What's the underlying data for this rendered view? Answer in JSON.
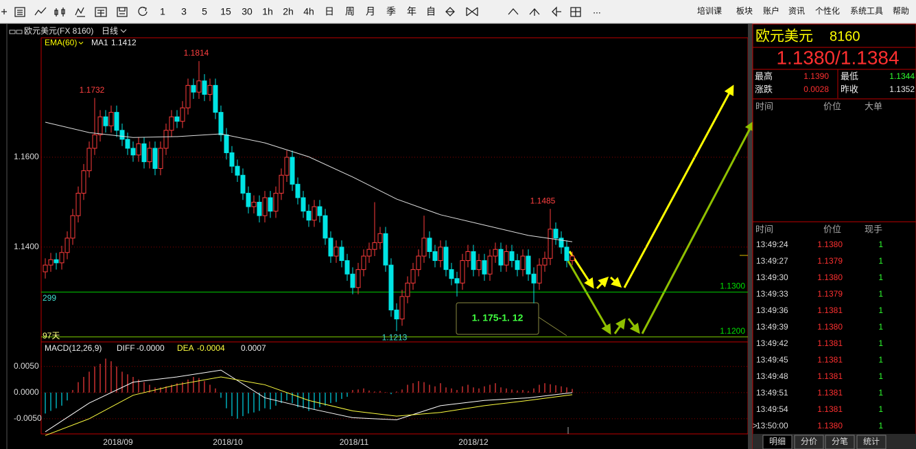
{
  "toolbar": {
    "periods": [
      "1",
      "3",
      "5",
      "15",
      "30",
      "1h",
      "2h",
      "4h",
      "日",
      "周",
      "月",
      "季",
      "年",
      "自"
    ],
    "more": "...",
    "menu": [
      "培训课",
      "板块",
      "账户",
      "资讯",
      "个性化",
      "系统工具",
      "帮助"
    ]
  },
  "header": {
    "symbol": "欧元美元(FX 8160)",
    "period": "日线"
  },
  "chart_data": [
    {
      "type": "candlestick",
      "ylim": [
        1.1189,
        1.1866
      ],
      "yticks": [
        {
          "value": 1.16,
          "label": "1.1600"
        },
        {
          "value": 1.14,
          "label": "1.1400"
        }
      ],
      "up_color": "#ff3c3c",
      "down_color": "#00e4e4",
      "ohlc": [
        [
          1.1345,
          1.1375,
          1.133,
          1.136
        ],
        [
          1.136,
          1.1387,
          1.1345,
          1.1372
        ],
        [
          1.1372,
          1.1387,
          1.135,
          1.1365
        ],
        [
          1.1365,
          1.1403,
          1.135,
          1.1388
        ],
        [
          1.1388,
          1.1435,
          1.1373,
          1.142
        ],
        [
          1.142,
          1.1485,
          1.1405,
          1.147
        ],
        [
          1.147,
          1.1535,
          1.1455,
          1.152
        ],
        [
          1.152,
          1.1585,
          1.1505,
          1.157
        ],
        [
          1.157,
          1.1635,
          1.1555,
          1.162
        ],
        [
          1.162,
          1.1732,
          1.1605,
          1.165
        ],
        [
          1.165,
          1.1705,
          1.1635,
          1.169
        ],
        [
          1.169,
          1.1705,
          1.1655,
          1.167
        ],
        [
          1.167,
          1.1715,
          1.1655,
          1.17
        ],
        [
          1.17,
          1.1715,
          1.1645,
          1.166
        ],
        [
          1.166,
          1.1675,
          1.1625,
          1.164
        ],
        [
          1.164,
          1.1655,
          1.1605,
          1.162
        ],
        [
          1.162,
          1.1635,
          1.159,
          1.1605
        ],
        [
          1.1605,
          1.1645,
          1.159,
          1.163
        ],
        [
          1.163,
          1.1645,
          1.1575,
          1.159
        ],
        [
          1.159,
          1.1635,
          1.1575,
          1.162
        ],
        [
          1.162,
          1.1635,
          1.156,
          1.1575
        ],
        [
          1.1575,
          1.1635,
          1.156,
          1.162
        ],
        [
          1.162,
          1.1675,
          1.1605,
          1.166
        ],
        [
          1.166,
          1.1705,
          1.1645,
          1.169
        ],
        [
          1.169,
          1.1705,
          1.1665,
          1.168
        ],
        [
          1.168,
          1.1725,
          1.1665,
          1.171
        ],
        [
          1.171,
          1.1775,
          1.1695,
          1.176
        ],
        [
          1.176,
          1.1775,
          1.173,
          1.1745
        ],
        [
          1.1745,
          1.1814,
          1.173,
          1.177
        ],
        [
          1.177,
          1.1785,
          1.1725,
          1.174
        ],
        [
          1.174,
          1.1775,
          1.1725,
          1.176
        ],
        [
          1.176,
          1.1775,
          1.1685,
          1.17
        ],
        [
          1.17,
          1.1715,
          1.1635,
          1.165
        ],
        [
          1.165,
          1.1665,
          1.1595,
          1.161
        ],
        [
          1.161,
          1.1625,
          1.1565,
          1.158
        ],
        [
          1.158,
          1.1595,
          1.1545,
          1.156
        ],
        [
          1.156,
          1.1575,
          1.1505,
          1.152
        ],
        [
          1.152,
          1.1535,
          1.1475,
          1.149
        ],
        [
          1.149,
          1.1515,
          1.1475,
          1.15
        ],
        [
          1.15,
          1.1515,
          1.1455,
          1.147
        ],
        [
          1.147,
          1.1525,
          1.1455,
          1.151
        ],
        [
          1.151,
          1.1525,
          1.1465,
          1.148
        ],
        [
          1.148,
          1.1535,
          1.1465,
          1.152
        ],
        [
          1.152,
          1.1575,
          1.1505,
          1.156
        ],
        [
          1.156,
          1.1615,
          1.1545,
          1.16
        ],
        [
          1.16,
          1.1615,
          1.1525,
          1.154
        ],
        [
          1.154,
          1.1555,
          1.1495,
          1.151
        ],
        [
          1.151,
          1.1525,
          1.1465,
          1.148
        ],
        [
          1.148,
          1.1495,
          1.1445,
          1.146
        ],
        [
          1.146,
          1.1505,
          1.1445,
          1.149
        ],
        [
          1.149,
          1.1505,
          1.1455,
          1.147
        ],
        [
          1.147,
          1.1485,
          1.1405,
          1.142
        ],
        [
          1.142,
          1.1435,
          1.1365,
          1.138
        ],
        [
          1.138,
          1.1415,
          1.1365,
          1.14
        ],
        [
          1.14,
          1.1415,
          1.1355,
          1.137
        ],
        [
          1.137,
          1.1385,
          1.1325,
          1.134
        ],
        [
          1.134,
          1.1355,
          1.1295,
          1.131
        ],
        [
          1.131,
          1.1365,
          1.1295,
          1.135
        ],
        [
          1.135,
          1.1395,
          1.1335,
          1.138
        ],
        [
          1.138,
          1.141,
          1.1365,
          1.1395
        ],
        [
          1.1395,
          1.15,
          1.138,
          1.141
        ],
        [
          1.141,
          1.1445,
          1.1395,
          1.143
        ],
        [
          1.143,
          1.1445,
          1.1345,
          1.136
        ],
        [
          1.136,
          1.1375,
          1.1245,
          1.126
        ],
        [
          1.126,
          1.1275,
          1.1213,
          1.124
        ],
        [
          1.124,
          1.1305,
          1.1225,
          1.129
        ],
        [
          1.129,
          1.1335,
          1.1275,
          1.132
        ],
        [
          1.132,
          1.1365,
          1.1305,
          1.135
        ],
        [
          1.135,
          1.1395,
          1.1335,
          1.138
        ],
        [
          1.138,
          1.147,
          1.1365,
          1.142
        ],
        [
          1.142,
          1.1435,
          1.1375,
          1.139
        ],
        [
          1.139,
          1.1405,
          1.1355,
          1.137
        ],
        [
          1.137,
          1.1415,
          1.1355,
          1.14
        ],
        [
          1.14,
          1.1415,
          1.1335,
          1.135
        ],
        [
          1.135,
          1.1365,
          1.1315,
          1.133
        ],
        [
          1.133,
          1.1345,
          1.129,
          1.132
        ],
        [
          1.132,
          1.1385,
          1.1305,
          1.137
        ],
        [
          1.137,
          1.1405,
          1.1355,
          1.139
        ],
        [
          1.139,
          1.1405,
          1.1335,
          1.135
        ],
        [
          1.135,
          1.1385,
          1.1335,
          1.137
        ],
        [
          1.137,
          1.1385,
          1.1325,
          1.134
        ],
        [
          1.134,
          1.1395,
          1.1325,
          1.138
        ],
        [
          1.138,
          1.141,
          1.1365,
          1.1395
        ],
        [
          1.1395,
          1.141,
          1.1345,
          1.136
        ],
        [
          1.136,
          1.1405,
          1.1345,
          1.139
        ],
        [
          1.139,
          1.1405,
          1.1355,
          1.137
        ],
        [
          1.137,
          1.1385,
          1.1335,
          1.135
        ],
        [
          1.135,
          1.1395,
          1.1335,
          1.138
        ],
        [
          1.138,
          1.1395,
          1.1325,
          1.134
        ],
        [
          1.134,
          1.1355,
          1.1275,
          1.132
        ],
        [
          1.132,
          1.1375,
          1.1305,
          1.136
        ],
        [
          1.136,
          1.139,
          1.1345,
          1.1375
        ],
        [
          1.1375,
          1.1485,
          1.136,
          1.144
        ],
        [
          1.144,
          1.1455,
          1.1405,
          1.142
        ],
        [
          1.142,
          1.1435,
          1.1385,
          1.14
        ],
        [
          1.14,
          1.1415,
          1.1355,
          1.137
        ],
        [
          1.137,
          1.139,
          1.136,
          1.138
        ]
      ],
      "ma": {
        "name": "EMA(60)",
        "label": "MA1",
        "last": 1.1412,
        "color": "#e0e0e0",
        "x": [
          0,
          8,
          16,
          24,
          32,
          40,
          48,
          56,
          64,
          72,
          80,
          88,
          96
        ],
        "values": [
          1.1678,
          1.1655,
          1.1644,
          1.1646,
          1.1652,
          1.1632,
          1.1601,
          1.1556,
          1.1507,
          1.1472,
          1.1449,
          1.1426,
          1.1412
        ]
      },
      "extremes": [
        1.1732,
        1.1814,
        1.1485,
        1.1213
      ],
      "levels": [
        {
          "value": 1.13,
          "label": "1.1300",
          "color": "#00d000"
        },
        {
          "value": 1.12,
          "label": "1.1200",
          "color": "#7fd000"
        }
      ],
      "side_labels": [
        "299",
        "97天"
      ],
      "note": "1. 175-1. 12",
      "x_labels": [
        "2018/09",
        "2018/10",
        "2018/11",
        "2018/12"
      ]
    },
    {
      "type": "macd",
      "title": "MACD(12,26,9)",
      "ylim": [
        -0.0079,
        0.0097
      ],
      "yticks": [
        {
          "value": 0.005,
          "label": "0.0050"
        },
        {
          "value": 0,
          "label": "0.0000"
        },
        {
          "value": -0.005,
          "label": "-0.0050"
        }
      ],
      "histogram": [
        -0.004,
        -0.0035,
        -0.003,
        -0.0025,
        -0.0015,
        0.0005,
        0.002,
        0.003,
        0.004,
        0.005,
        0.0055,
        0.0065,
        0.006,
        0.005,
        0.004,
        0.0035,
        0.003,
        0.0025,
        0.002,
        0.0015,
        0.001,
        0.001,
        0.0012,
        0.0015,
        0.0018,
        0.002,
        0.0025,
        0.003,
        0.0028,
        0.0022,
        0.0015,
        0.0008,
        -0.001,
        -0.003,
        -0.0045,
        -0.005,
        -0.0045,
        -0.004,
        -0.0038,
        -0.0035,
        -0.003,
        -0.0032,
        -0.0025,
        -0.002,
        -0.0015,
        -0.002,
        -0.0028,
        -0.003,
        -0.0035,
        -0.0032,
        -0.0028,
        -0.0025,
        -0.002,
        -0.0018,
        -0.0012,
        -0.0008,
        0.0005,
        0.0006,
        0.0008,
        0.0004,
        0.0002,
        0.0003,
        0.0001,
        -0.0003,
        0.0002,
        0.0006,
        0.0015,
        0.0018,
        0.0022,
        0.002,
        0.0015,
        0.0012,
        0.0018,
        0.001,
        0.0008,
        0.0005,
        0.0012,
        0.0015,
        0.001,
        0.0008,
        0.0012,
        0.0015,
        0.0018,
        0.001,
        0.0008,
        0.0006,
        0.0004,
        0.0005,
        0.0003,
        0.0008,
        0.0015,
        0.0018,
        0.0016,
        0.0014,
        0.0012,
        0.001,
        0.0007
      ],
      "up_color": "#ff3c3c",
      "down_color": "#00d8e8",
      "series": [
        {
          "name": "DIFF",
          "last": {
            "value": 0,
            "label": "-0.0000"
          },
          "color": "#ffffff",
          "x": [
            0,
            8,
            16,
            24,
            32,
            40,
            48,
            56,
            64,
            72,
            80,
            88,
            96
          ],
          "values": [
            -0.0075,
            -0.002,
            0.002,
            0.003,
            0.0043,
            -0.001,
            -0.003,
            -0.0048,
            -0.0052,
            -0.0025,
            -0.0015,
            -0.001,
            0
          ]
        },
        {
          "name": "DEA",
          "last": -0.0004,
          "color": "#ffff40",
          "x": [
            0,
            8,
            16,
            24,
            32,
            40,
            48,
            56,
            64,
            72,
            80,
            88,
            96
          ],
          "values": [
            -0.0082,
            -0.005,
            -0.0005,
            0.0015,
            0.003,
            0.0015,
            -0.0015,
            -0.0035,
            -0.0045,
            -0.0038,
            -0.0025,
            -0.0015,
            -0.0004
          ]
        }
      ],
      "macd_last": 0.0007
    }
  ],
  "quote": {
    "name": "欧元美元",
    "code": "8160",
    "price": "1.1380/1.1384",
    "rows": [
      [
        "最高",
        "1.1390",
        "最低",
        "1.1344"
      ],
      [
        "涨跌",
        "0.0028",
        "昨收",
        "1.1352"
      ]
    ]
  },
  "big_orders": {
    "header": [
      "时间",
      "价位",
      "大单"
    ]
  },
  "trades": {
    "header": [
      "时间",
      "价位",
      "现手"
    ],
    "cursor": ">",
    "rows": [
      [
        "13:49:24",
        "1.1380",
        "1"
      ],
      [
        "13:49:27",
        "1.1379",
        "1"
      ],
      [
        "13:49:30",
        "1.1380",
        "1"
      ],
      [
        "13:49:33",
        "1.1379",
        "1"
      ],
      [
        "13:49:36",
        "1.1381",
        "1"
      ],
      [
        "13:49:39",
        "1.1380",
        "1"
      ],
      [
        "13:49:42",
        "1.1381",
        "1"
      ],
      [
        "13:49:45",
        "1.1381",
        "1"
      ],
      [
        "13:49:48",
        "1.1381",
        "1"
      ],
      [
        "13:49:51",
        "1.1381",
        "1"
      ],
      [
        "13:49:54",
        "1.1381",
        "1"
      ],
      [
        "13:50:00",
        "1.1380",
        "1"
      ]
    ]
  },
  "tabs": [
    "明细",
    "分价",
    "分笔",
    "统计"
  ]
}
